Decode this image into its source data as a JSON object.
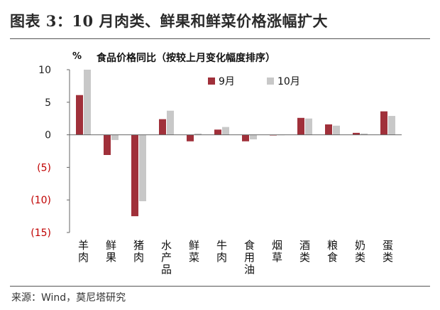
{
  "figure_title": "图表 3：10 月肉类、鲜果和鲜菜价格涨幅扩大",
  "source": "来源：Wind，莫尼塔研究",
  "chart_data": {
    "type": "bar",
    "title": "食品价格同比（按较上月变化幅度排序）",
    "unit_label": "%",
    "categories": [
      "羊肉",
      "鲜果",
      "猪肉",
      "水产品",
      "鲜菜",
      "牛肉",
      "食用油",
      "烟草",
      "酒类",
      "粮食",
      "奶类",
      "蛋类"
    ],
    "series": [
      {
        "name": "9月",
        "color": "#a0303a",
        "values": [
          6.1,
          -3.1,
          -12.5,
          2.4,
          -1.0,
          0.8,
          -1.0,
          -0.1,
          2.6,
          1.6,
          0.3,
          3.6
        ]
      },
      {
        "name": "10月",
        "color": "#c8c8c8",
        "values": [
          10.0,
          -0.8,
          -10.2,
          3.7,
          0.2,
          1.2,
          -0.7,
          0.0,
          2.5,
          1.4,
          0.2,
          2.9
        ]
      }
    ],
    "ylim": [
      -15,
      10
    ],
    "yticks": [
      {
        "value": 10,
        "label": "10"
      },
      {
        "value": 5,
        "label": "5"
      },
      {
        "value": 0,
        "label": "0"
      },
      {
        "value": -5,
        "label": "(5)"
      },
      {
        "value": -10,
        "label": "(10)"
      },
      {
        "value": -15,
        "label": "(15)"
      }
    ],
    "negative_tick_color": "#c00000",
    "legend_position": "top-right",
    "grid": false
  }
}
